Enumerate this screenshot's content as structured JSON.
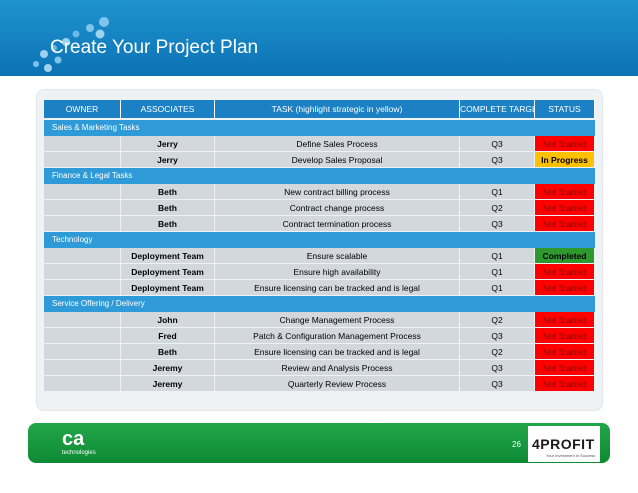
{
  "slide": {
    "title": "Create Your Project Plan",
    "page_number": "26"
  },
  "table": {
    "headers": [
      "OWNER",
      "ASSOCIATES",
      "TASK (highlight strategic in yellow)",
      "COMPLETE TARGET",
      "STATUS"
    ],
    "sections": [
      {
        "name": "Sales & Marketing Tasks",
        "rows": [
          {
            "owner": "",
            "associates": "Jerry",
            "task": "Define Sales Process",
            "target": "Q3",
            "status": "Not Started",
            "status_color": "red"
          },
          {
            "owner": "",
            "associates": "Jerry",
            "task": "Develop Sales Proposal",
            "target": "Q3",
            "status": "In Progress",
            "status_color": "yellow"
          }
        ]
      },
      {
        "name": "Finance & Legal Tasks",
        "rows": [
          {
            "owner": "",
            "associates": "Beth",
            "task": "New contract billing process",
            "target": "Q1",
            "status": "Not Started",
            "status_color": "red"
          },
          {
            "owner": "",
            "associates": "Beth",
            "task": "Contract change process",
            "target": "Q2",
            "status": "Not Started",
            "status_color": "red"
          },
          {
            "owner": "",
            "associates": "Beth",
            "task": "Contract termination process",
            "target": "Q3",
            "status": "Not Started",
            "status_color": "red"
          }
        ]
      },
      {
        "name": "Technology",
        "rows": [
          {
            "owner": "",
            "associates": "Deployment Team",
            "task": "Ensure scalable",
            "target": "Q1",
            "status": "Completed",
            "status_color": "green"
          },
          {
            "owner": "",
            "associates": "Deployment Team",
            "task": "Ensure high availability",
            "target": "Q1",
            "status": "Not Started",
            "status_color": "red"
          },
          {
            "owner": "",
            "associates": "Deployment Team",
            "task": "Ensure licensing can be tracked and is legal",
            "target": "Q1",
            "status": "Not Started",
            "status_color": "red"
          }
        ]
      },
      {
        "name": "Service Offering / Delivery",
        "rows": [
          {
            "owner": "",
            "associates": "John",
            "task": "Change Management Process",
            "target": "Q2",
            "status": "Not Started",
            "status_color": "red"
          },
          {
            "owner": "",
            "associates": "Fred",
            "task": "Patch & Configuration Management Process",
            "target": "Q3",
            "status": "Not Started",
            "status_color": "red"
          },
          {
            "owner": "",
            "associates": "Beth",
            "task": "Ensure licensing can be tracked and is legal",
            "target": "Q2",
            "status": "Not Started",
            "status_color": "red"
          },
          {
            "owner": "",
            "associates": "Jeremy",
            "task": "Review and Analysis Process",
            "target": "Q3",
            "status": "Not Started",
            "status_color": "red"
          },
          {
            "owner": "",
            "associates": "Jeremy",
            "task": "Quarterly Review Process",
            "target": "Q3",
            "status": "Not Started",
            "status_color": "red"
          }
        ]
      }
    ]
  },
  "footer": {
    "left_logo_text": "ca",
    "left_logo_sub": "technologies",
    "right_logo_text": "4PROFIT",
    "right_logo_tagline": "Your Investment in Success",
    "bubble_icon": "decorative-bubbles-icon"
  },
  "colors": {
    "header_blue": "#0c72b4",
    "section_blue": "#2e9ad8",
    "not_started": "#ff0000",
    "in_progress": "#ffc000",
    "completed": "#2e9a2e",
    "footer_green": "#119037"
  }
}
